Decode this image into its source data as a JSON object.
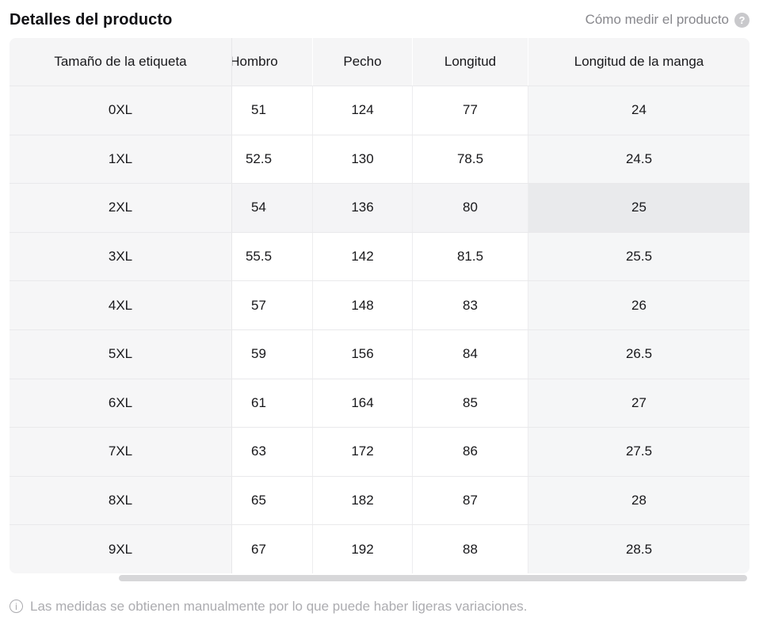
{
  "header": {
    "title": "Detalles del producto",
    "measure_link": "Cómo medir el producto",
    "help_icon": "?"
  },
  "table": {
    "columns": [
      "Tamaño de la etiqueta",
      "Hombro",
      "Pecho",
      "Longitud",
      "Longitud de la manga"
    ],
    "rows": [
      {
        "size": "0XL",
        "values": [
          "51",
          "124",
          "77",
          "24"
        ],
        "highlighted": false
      },
      {
        "size": "1XL",
        "values": [
          "52.5",
          "130",
          "78.5",
          "24.5"
        ],
        "highlighted": false
      },
      {
        "size": "2XL",
        "values": [
          "54",
          "136",
          "80",
          "25"
        ],
        "highlighted": true
      },
      {
        "size": "3XL",
        "values": [
          "55.5",
          "142",
          "81.5",
          "25.5"
        ],
        "highlighted": false
      },
      {
        "size": "4XL",
        "values": [
          "57",
          "148",
          "83",
          "26"
        ],
        "highlighted": false
      },
      {
        "size": "5XL",
        "values": [
          "59",
          "156",
          "84",
          "26.5"
        ],
        "highlighted": false
      },
      {
        "size": "6XL",
        "values": [
          "61",
          "164",
          "85",
          "27"
        ],
        "highlighted": false
      },
      {
        "size": "7XL",
        "values": [
          "63",
          "172",
          "86",
          "27.5"
        ],
        "highlighted": false
      },
      {
        "size": "8XL",
        "values": [
          "65",
          "182",
          "87",
          "28"
        ],
        "highlighted": false
      },
      {
        "size": "9XL",
        "values": [
          "67",
          "192",
          "88",
          "28.5"
        ],
        "highlighted": false
      }
    ],
    "highlighted_size": "2XL"
  },
  "footer": {
    "info_icon": "i",
    "note": "Las medidas se obtienen manualmente por lo que puede haber ligeras variaciones."
  },
  "colors": {
    "header_bg": "#f5f5f6",
    "fixed_column_bg": "#f6f6f7",
    "last_column_bg": "#f5f6f7",
    "highlight_row_bg": "#f4f4f6",
    "highlight_cell_bg": "#e9eaec",
    "link_text": "#87878c",
    "muted_text": "#acacb0"
  }
}
